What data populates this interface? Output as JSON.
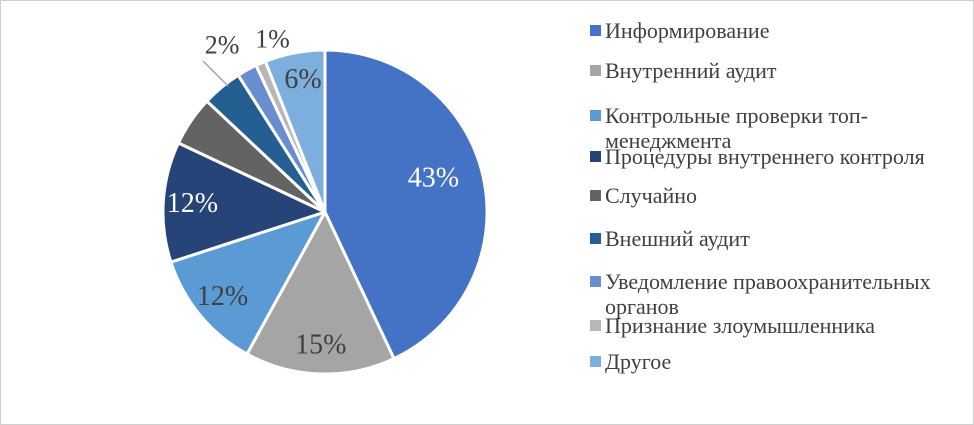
{
  "figure": {
    "background": "#ffffff",
    "border_color": "#cfcfcf"
  },
  "chart_data": {
    "type": "pie",
    "title": "",
    "start_angle_deg": 0,
    "direction": "clockwise",
    "legend_position": "right",
    "gap_color": "#ffffff",
    "label_colors": {
      "light": "#ffffff",
      "dark": "#404040"
    },
    "slices": [
      {
        "legend_label": "Информирование",
        "legend_lines": [
          "Информирование"
        ],
        "value": 43,
        "pct_label": "43%",
        "label_shown": true,
        "label_placement": "inside",
        "label_color": "#ffffff",
        "color": "#4472C4"
      },
      {
        "legend_label": "Внутренний аудит",
        "legend_lines": [
          "Внутренний аудит"
        ],
        "value": 15,
        "pct_label": "15%",
        "label_shown": true,
        "label_placement": "inside",
        "label_color": "#404040",
        "color": "#A5A5A5"
      },
      {
        "legend_label": "Контрольные проверки топ-менеджмента",
        "legend_lines": [
          "Контрольные проверки топ-",
          "менеджмента"
        ],
        "value": 12,
        "pct_label": "12%",
        "label_shown": true,
        "label_placement": "inside",
        "label_color": "#404040",
        "color": "#5B9BD5"
      },
      {
        "legend_label": "Процедуры внутреннего контроля",
        "legend_lines": [
          "Процедуры внутреннего контроля"
        ],
        "value": 12,
        "pct_label": "12%",
        "label_shown": true,
        "label_placement": "inside",
        "label_color": "#ffffff",
        "color": "#264478"
      },
      {
        "legend_label": "Случайно",
        "legend_lines": [
          "Случайно"
        ],
        "value": 5,
        "pct_label": null,
        "label_shown": false,
        "label_placement": "none",
        "label_color": null,
        "color": "#636363"
      },
      {
        "legend_label": "Внешний аудит",
        "legend_lines": [
          "Внешний аудит"
        ],
        "value": 4,
        "pct_label": null,
        "label_shown": false,
        "label_placement": "none",
        "label_color": null,
        "color": "#255E91"
      },
      {
        "legend_label": "Уведомление правоохранительных органов",
        "legend_lines": [
          "Уведомление правоохранительных",
          "органов"
        ],
        "value": 2,
        "pct_label": "2%",
        "label_shown": true,
        "label_placement": "outside",
        "leader_line": true,
        "label_color": "#404040",
        "color": "#698ED0"
      },
      {
        "legend_label": "Признание злоумышленника",
        "legend_lines": [
          "Признание злоумышленника"
        ],
        "value": 1,
        "pct_label": "1%",
        "label_shown": true,
        "label_placement": "outside",
        "leader_line": false,
        "label_color": "#404040",
        "color": "#B7B7B7"
      },
      {
        "legend_label": "Другое",
        "legend_lines": [
          "Другое"
        ],
        "value": 6,
        "pct_label": "6%",
        "label_shown": true,
        "label_placement": "inside",
        "label_color": "#404040",
        "color": "#7CAFDD"
      }
    ]
  }
}
